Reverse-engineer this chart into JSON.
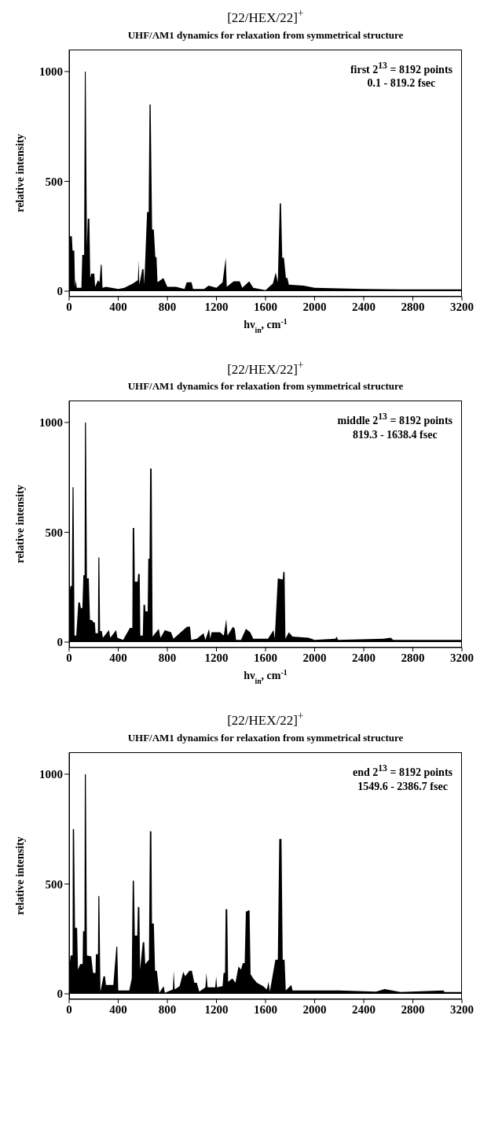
{
  "chart_data": [
    {
      "type": "area",
      "title": "[22/HEX/22]$^{+}$",
      "subtitle": "UHF/AM1 dynamics for relaxation from symmetrical structure",
      "xlabel": "hν$_{in}$, cm$^{-1}$",
      "ylabel": "relative intensity",
      "annotations": [
        "first 2$^{13}$ = 8192 points",
        "0.1 - 819.2 fsec"
      ],
      "xlim": [
        0,
        3200
      ],
      "xticks": [
        0,
        400,
        800,
        1200,
        1600,
        2000,
        2400,
        2800,
        3200
      ],
      "ylim": [
        -25,
        1100
      ],
      "yticks": [
        0,
        500,
        1000
      ],
      "series": [
        {
          "color": "#000000",
          "x": [
            0,
            5,
            22,
            28,
            42,
            48,
            55,
            62,
            100,
            107,
            122,
            128,
            135,
            145,
            152,
            165,
            172,
            180,
            205,
            212,
            235,
            248,
            258,
            265,
            272,
            300,
            400,
            450,
            520,
            560,
            566,
            572,
            596,
            606,
            612,
            635,
            648,
            655,
            664,
            676,
            690,
            702,
            712,
            720,
            768,
            800,
            870,
            940,
            958,
            997,
            1010,
            1100,
            1136,
            1200,
            1250,
            1276,
            1284,
            1340,
            1390,
            1410,
            1467,
            1500,
            1600,
            1660,
            1683,
            1700,
            1716,
            1726,
            1736,
            1750,
            1766,
            1778,
            1790,
            1910,
            2000,
            2400,
            2800,
            3200
          ],
          "values": [
            10,
            250,
            250,
            185,
            185,
            20,
            50,
            15,
            15,
            165,
            165,
            1000,
            1000,
            200,
            330,
            330,
            60,
            80,
            80,
            20,
            50,
            40,
            120,
            120,
            15,
            20,
            10,
            15,
            35,
            50,
            140,
            30,
            100,
            100,
            30,
            360,
            360,
            850,
            850,
            280,
            280,
            155,
            155,
            40,
            60,
            20,
            20,
            10,
            40,
            40,
            10,
            10,
            25,
            15,
            40,
            152,
            20,
            45,
            45,
            15,
            45,
            15,
            5,
            35,
            85,
            40,
            400,
            400,
            152,
            152,
            60,
            60,
            30,
            25,
            15,
            10,
            8,
            8
          ]
        }
      ]
    },
    {
      "type": "area",
      "title": "[22/HEX/22]$^{+}$",
      "subtitle": "UHF/AM1 dynamics for relaxation from symmetrical structure",
      "xlabel": "hν$_{in}$, cm$^{-1}$",
      "ylabel": "relative intensity",
      "annotations": [
        "middle 2$^{13}$ = 8192 points",
        "819.3 - 1638.4 fsec"
      ],
      "xlim": [
        0,
        3200
      ],
      "xticks": [
        0,
        400,
        800,
        1200,
        1600,
        2000,
        2400,
        2800,
        3200
      ],
      "ylim": [
        -25,
        1100
      ],
      "yticks": [
        0,
        500,
        1000
      ],
      "series": [
        {
          "color": "#000000",
          "x": [
            0,
            10,
            22,
            28,
            36,
            44,
            58,
            75,
            88,
            95,
            108,
            116,
            126,
            129,
            137,
            145,
            160,
            170,
            185,
            200,
            210,
            215,
            235,
            238,
            246,
            252,
            266,
            275,
            325,
            335,
            383,
            393,
            440,
            495,
            515,
            518,
            530,
            535,
            558,
            562,
            575,
            580,
            600,
            606,
            618,
            622,
            640,
            645,
            655,
            660,
            672,
            680,
            730,
            745,
            780,
            800,
            830,
            850,
            960,
            985,
            995,
            1040,
            1095,
            1110,
            1140,
            1150,
            1160,
            1230,
            1260,
            1280,
            1290,
            1335,
            1350,
            1360,
            1400,
            1440,
            1475,
            1500,
            1620,
            1665,
            1675,
            1700,
            1740,
            1745,
            1755,
            1762,
            1790,
            1820,
            1950,
            2000,
            2170,
            2180,
            2190,
            2560,
            2620,
            2640,
            3200
          ],
          "values": [
            200,
            255,
            255,
            705,
            705,
            30,
            30,
            180,
            180,
            155,
            155,
            305,
            305,
            1000,
            1000,
            290,
            290,
            100,
            100,
            90,
            90,
            40,
            40,
            385,
            385,
            50,
            50,
            20,
            55,
            20,
            55,
            20,
            10,
            65,
            65,
            520,
            520,
            275,
            275,
            310,
            310,
            30,
            30,
            170,
            170,
            140,
            140,
            380,
            380,
            790,
            790,
            25,
            60,
            20,
            55,
            50,
            45,
            15,
            70,
            70,
            10,
            15,
            40,
            10,
            60,
            15,
            45,
            45,
            30,
            105,
            30,
            70,
            60,
            10,
            10,
            60,
            45,
            15,
            15,
            55,
            15,
            290,
            285,
            320,
            320,
            15,
            45,
            25,
            20,
            10,
            15,
            25,
            10,
            15,
            20,
            10,
            10
          ]
        }
      ]
    },
    {
      "type": "area",
      "title": "[22/HEX/22]$^{+}$",
      "subtitle": "UHF/AM1 dynamics for relaxation from symmetrical structure",
      "ylabel": "relative intensity",
      "annotations": [
        "end 2$^{13}$ = 8192 points",
        "1549.6 - 2386.7 fsec"
      ],
      "xlim": [
        0,
        3200
      ],
      "xticks": [
        0,
        400,
        800,
        1200,
        1600,
        2000,
        2400,
        2800,
        3200
      ],
      "ylim": [
        -25,
        1100
      ],
      "yticks": [
        0,
        500,
        1000
      ],
      "series": [
        {
          "color": "#000000",
          "x": [
            0,
            12,
            28,
            30,
            40,
            48,
            65,
            72,
            90,
            110,
            113,
            125,
            128,
            136,
            145,
            180,
            195,
            215,
            218,
            235,
            238,
            246,
            255,
            280,
            292,
            300,
            340,
            360,
            385,
            392,
            400,
            490,
            510,
            518,
            528,
            535,
            555,
            560,
            572,
            578,
            600,
            612,
            620,
            650,
            658,
            670,
            675,
            690,
            700,
            715,
            735,
            770,
            780,
            845,
            852,
            860,
            900,
            930,
            945,
            980,
            1000,
            1020,
            1040,
            1060,
            1110,
            1118,
            1128,
            1190,
            1198,
            1205,
            1250,
            1258,
            1270,
            1275,
            1288,
            1295,
            1330,
            1355,
            1380,
            1400,
            1415,
            1430,
            1440,
            1452,
            1458,
            1470,
            1478,
            1500,
            1530,
            1580,
            1610,
            1625,
            1635,
            1680,
            1700,
            1712,
            1730,
            1740,
            1755,
            1765,
            1810,
            1820,
            1900,
            2200,
            2500,
            2570,
            2630,
            2700,
            3047,
            3060,
            3200
          ],
          "values": [
            110,
            175,
            175,
            750,
            750,
            300,
            300,
            110,
            135,
            135,
            285,
            285,
            1000,
            1000,
            175,
            170,
            95,
            95,
            180,
            180,
            445,
            445,
            10,
            80,
            80,
            40,
            40,
            40,
            215,
            215,
            15,
            15,
            70,
            515,
            515,
            265,
            265,
            395,
            395,
            110,
            235,
            235,
            135,
            155,
            740,
            740,
            320,
            320,
            105,
            105,
            5,
            35,
            5,
            20,
            105,
            20,
            35,
            100,
            80,
            105,
            105,
            50,
            50,
            10,
            30,
            95,
            30,
            30,
            80,
            30,
            35,
            95,
            95,
            385,
            385,
            55,
            70,
            50,
            125,
            110,
            140,
            140,
            375,
            375,
            380,
            380,
            90,
            70,
            50,
            35,
            20,
            55,
            10,
            155,
            155,
            705,
            705,
            155,
            155,
            15,
            40,
            15,
            15,
            15,
            10,
            22,
            15,
            8,
            15,
            8,
            8
          ]
        }
      ]
    }
  ]
}
